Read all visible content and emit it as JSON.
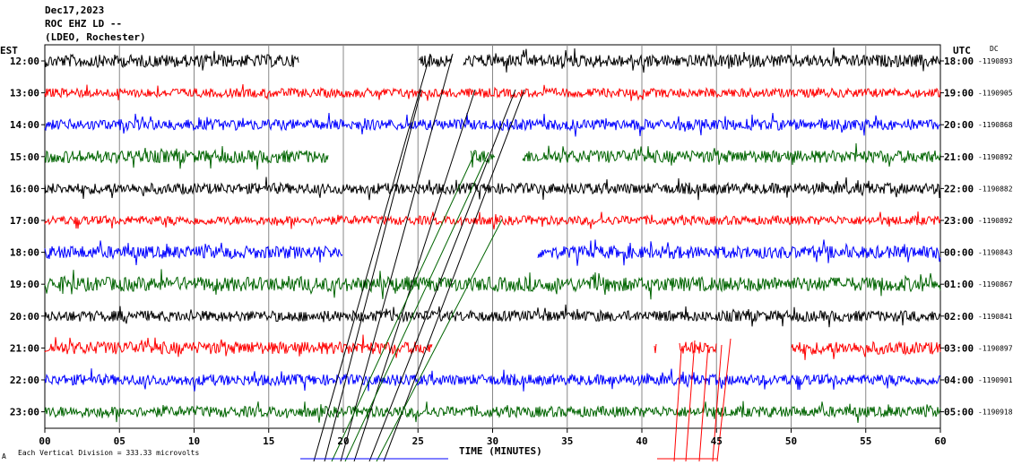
{
  "header": {
    "date": "Dec17,2023",
    "station": "ROC EHZ LD --",
    "network": "(LDEO, Rochester)"
  },
  "chart_data": {
    "type": "line",
    "left_axis_label": "EST",
    "right_axis_label": "UTC",
    "right_value_label": "DC",
    "xlabel": "TIME (MINUTES)",
    "scale_note": "Each Vertical Division =  333.33 microvolts",
    "corner_mark": "A",
    "x_ticks": [
      "00",
      "05",
      "10",
      "15",
      "20",
      "25",
      "30",
      "35",
      "40",
      "45",
      "50",
      "55",
      "60"
    ],
    "xlim": [
      0,
      60
    ],
    "grid": true,
    "colors": [
      "#000000",
      "#ff0000",
      "#0000ff",
      "#006400"
    ],
    "traces": [
      {
        "est": "12:00",
        "utc": "18:00",
        "dc": "-1190893",
        "color": "#000000",
        "amp": 7,
        "gaps": [
          [
            17.0,
            25.0
          ],
          [
            27.3,
            28.0
          ]
        ]
      },
      {
        "est": "13:00",
        "utc": "19:00",
        "dc": "-1190905",
        "color": "#ff0000",
        "amp": 5,
        "gaps": []
      },
      {
        "est": "14:00",
        "utc": "20:00",
        "dc": "-1190868",
        "color": "#0000ff",
        "amp": 6,
        "gaps": []
      },
      {
        "est": "15:00",
        "utc": "21:00",
        "dc": "-1190892",
        "color": "#006400",
        "amp": 7,
        "gaps": [
          [
            19.0,
            28.5
          ],
          [
            30.2,
            32.0
          ]
        ]
      },
      {
        "est": "16:00",
        "utc": "22:00",
        "dc": "-1190882",
        "color": "#000000",
        "amp": 6,
        "gaps": []
      },
      {
        "est": "17:00",
        "utc": "23:00",
        "dc": "-1190892",
        "color": "#ff0000",
        "amp": 5,
        "gaps": []
      },
      {
        "est": "18:00",
        "utc": "00:00",
        "dc": "-1190843",
        "color": "#0000ff",
        "amp": 7,
        "gaps": [
          [
            20.0,
            33.0
          ]
        ]
      },
      {
        "est": "19:00",
        "utc": "01:00",
        "dc": "-1190867",
        "color": "#006400",
        "amp": 8,
        "gaps": []
      },
      {
        "est": "20:00",
        "utc": "02:00",
        "dc": "-1190841",
        "color": "#000000",
        "amp": 6,
        "gaps": []
      },
      {
        "est": "21:00",
        "utc": "03:00",
        "dc": "-1190897",
        "color": "#ff0000",
        "amp": 7,
        "gaps": [
          [
            26.0,
            40.8
          ],
          [
            41.0,
            42.5
          ],
          [
            45.0,
            50.0
          ]
        ]
      },
      {
        "est": "22:00",
        "utc": "04:00",
        "dc": "-1190901",
        "color": "#0000ff",
        "amp": 6,
        "gaps": []
      },
      {
        "est": "23:00",
        "utc": "05:00",
        "dc": "-1190918",
        "color": "#006400",
        "amp": 6,
        "gaps": []
      }
    ]
  }
}
